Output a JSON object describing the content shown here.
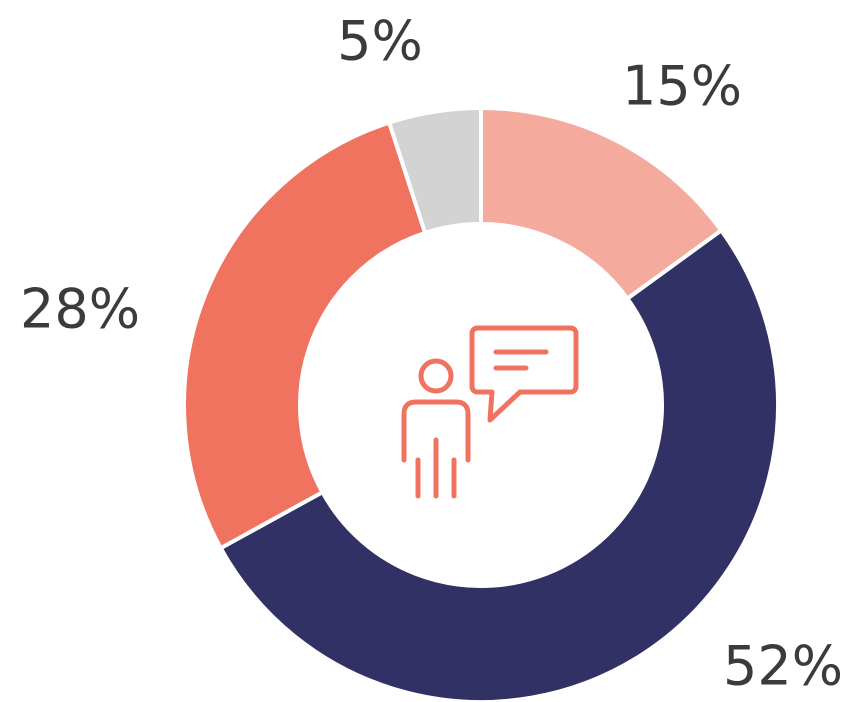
{
  "chart_data": {
    "type": "pie",
    "values": [
      15,
      52,
      28,
      5
    ],
    "value_labels": [
      "15%",
      "52%",
      "28%",
      "5%"
    ],
    "colors": [
      "#f5aa9e",
      "#323165",
      "#f07360",
      "#d3d3d3"
    ],
    "donut": true
  }
}
